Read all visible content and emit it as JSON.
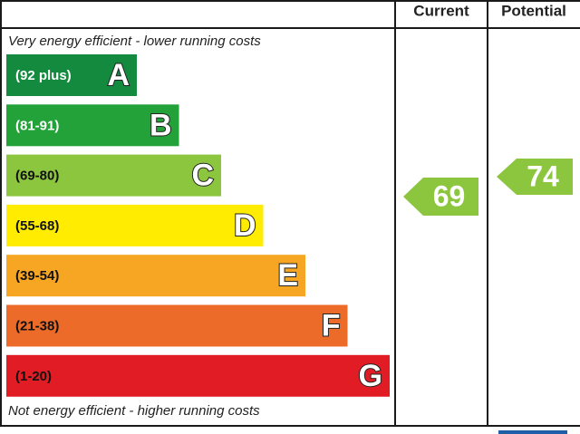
{
  "header": {
    "current": "Current",
    "potential": "Potential"
  },
  "top_note": "Very energy efficient - lower running costs",
  "bottom_note": "Not energy efficient - higher running costs",
  "bands": [
    {
      "range": "(92 plus)",
      "letter": "A",
      "color": "#138a3e",
      "text_color": "#fff"
    },
    {
      "range": "(81-91)",
      "letter": "B",
      "color": "#23a23a",
      "text_color": "#fff"
    },
    {
      "range": "(69-80)",
      "letter": "C",
      "color": "#8cc63f",
      "text_color": "#111"
    },
    {
      "range": "(55-68)",
      "letter": "D",
      "color": "#ffec00",
      "text_color": "#111"
    },
    {
      "range": "(39-54)",
      "letter": "E",
      "color": "#f6a623",
      "text_color": "#111"
    },
    {
      "range": "(21-38)",
      "letter": "F",
      "color": "#ec6b29",
      "text_color": "#111"
    },
    {
      "range": "(1-20)",
      "letter": "G",
      "color": "#e21c24",
      "text_color": "#111"
    }
  ],
  "current": {
    "value": 69,
    "color": "#8cc63f"
  },
  "potential": {
    "value": 74,
    "color": "#8cc63f"
  }
}
